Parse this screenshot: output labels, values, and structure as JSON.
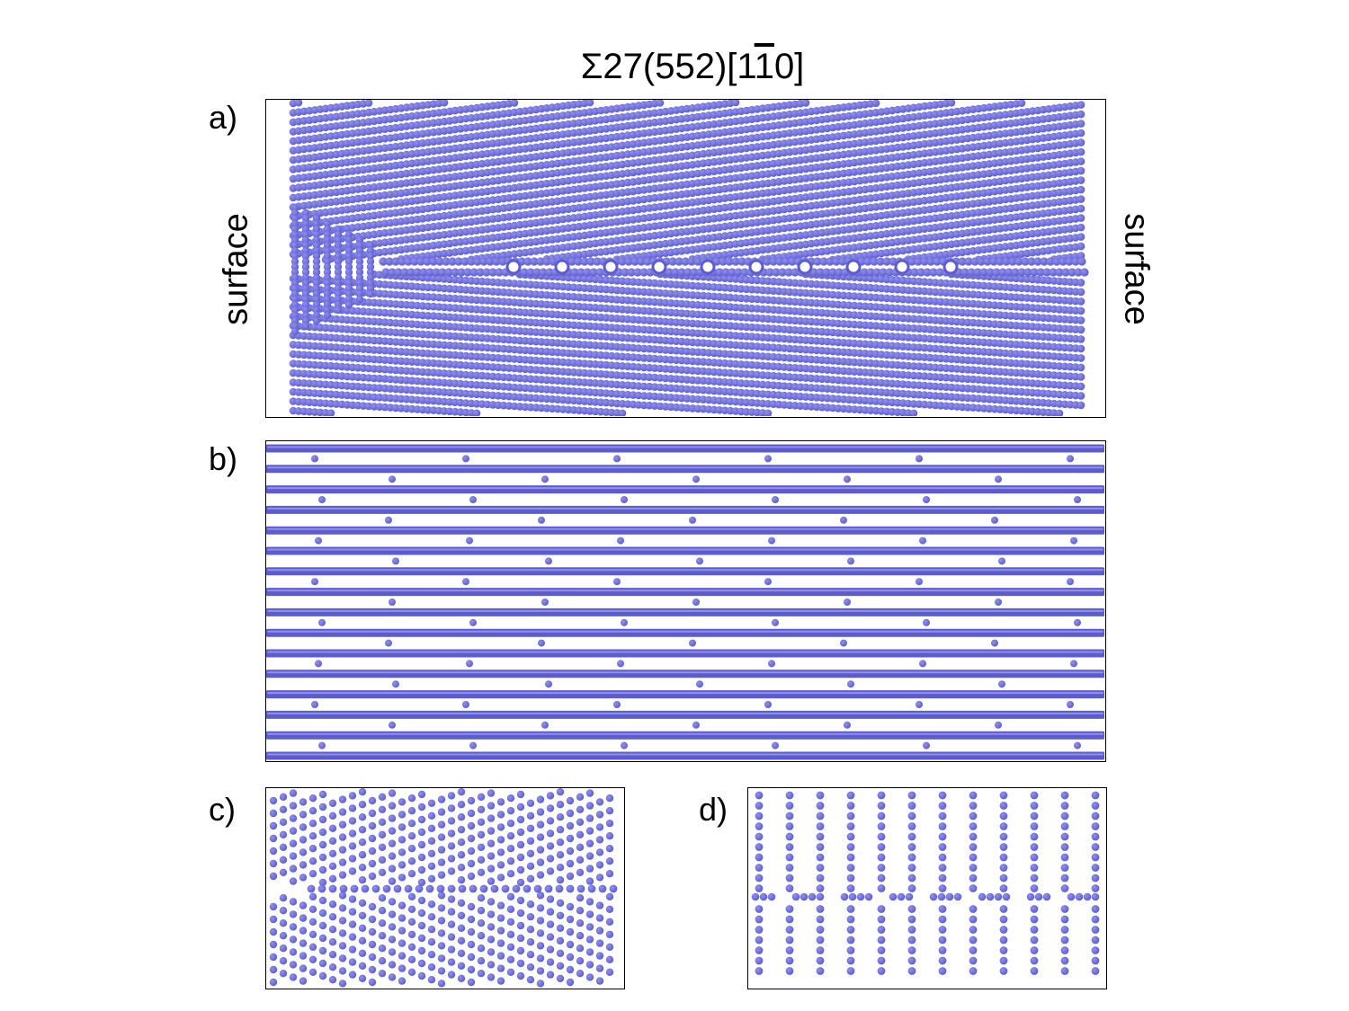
{
  "figure": {
    "title_prefix": "Σ27(552)[1",
    "title_overline": "1",
    "title_suffix": "0]",
    "side_label_left": "surface",
    "side_label_right": "surface",
    "panels": [
      {
        "label": "a)"
      },
      {
        "label": "b)"
      },
      {
        "label": "c)"
      },
      {
        "label": "d)"
      }
    ],
    "colors": {
      "atom": "#5c5ccf",
      "atom_highlight": "#9090ee",
      "frame": "#000000",
      "background": "#ffffff"
    }
  }
}
